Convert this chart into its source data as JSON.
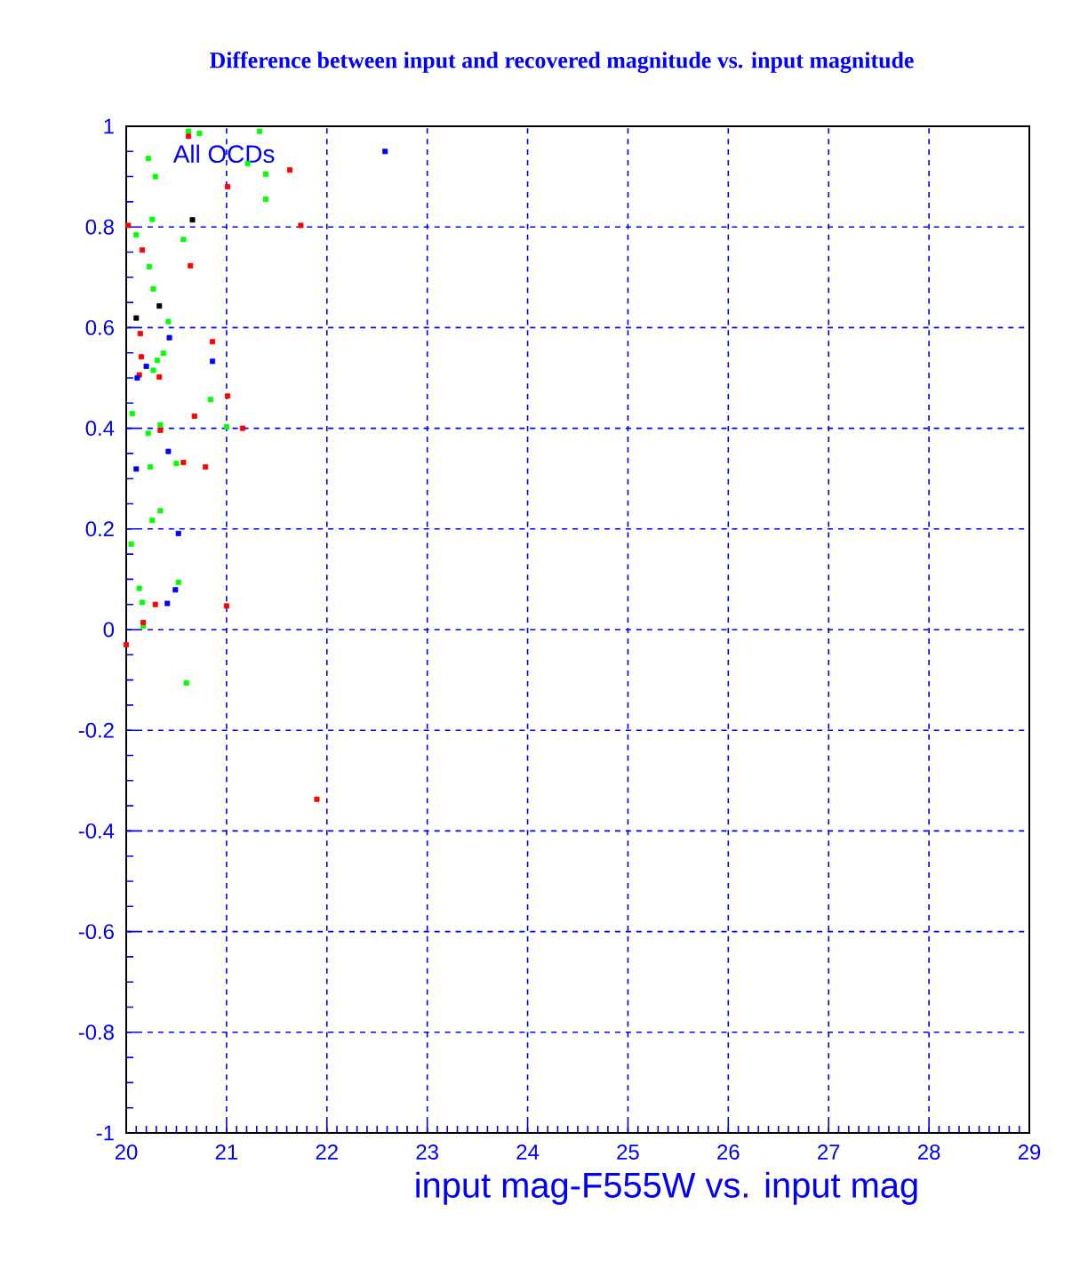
{
  "chart_data": {
    "type": "scatter",
    "title": "Difference between input and recovered magnitude vs. input magnitude",
    "xlabel": "input mag-F555W vs. input mag",
    "annotations": [
      "All OCDs"
    ],
    "xlim": [
      20,
      29
    ],
    "ylim": [
      -1,
      1
    ],
    "xticks": [
      20,
      21,
      22,
      23,
      24,
      25,
      26,
      27,
      28,
      29
    ],
    "yticks": [
      -1,
      -0.8,
      -0.6,
      -0.4,
      -0.2,
      0,
      0.2,
      0.4,
      0.6,
      0.8,
      1
    ],
    "grid": true,
    "marker": "square",
    "series": [
      {
        "color": "#00ff00",
        "x": [
          20.62,
          20.73,
          21.33,
          21.39,
          21.39,
          20.22,
          20.29,
          21.21,
          20.26,
          20.1,
          20.57,
          20.23,
          20.27,
          20.42,
          20.37,
          20.31,
          20.27,
          20.84,
          20.06,
          20.34,
          20.22,
          21.0,
          20.24,
          20.5,
          20.34,
          20.26,
          20.05,
          20.52,
          20.13,
          20.16,
          20.17,
          20.6
        ],
        "values": [
          0.99,
          0.986,
          0.99,
          0.905,
          0.855,
          0.936,
          0.9,
          0.926,
          0.815,
          0.784,
          0.775,
          0.721,
          0.677,
          0.612,
          0.549,
          0.535,
          0.515,
          0.457,
          0.429,
          0.407,
          0.39,
          0.403,
          0.323,
          0.33,
          0.236,
          0.217,
          0.17,
          0.094,
          0.082,
          0.054,
          0.007,
          -0.106
        ]
      },
      {
        "color": "#ff0000",
        "x": [
          20.62,
          21.63,
          21.01,
          20.02,
          21.74,
          20.16,
          20.64,
          20.14,
          20.86,
          20.15,
          20.13,
          20.33,
          21.01,
          20.68,
          20.34,
          21.16,
          20.57,
          20.79,
          20.29,
          21.0,
          20.17,
          20.0,
          21.9
        ],
        "values": [
          0.98,
          0.913,
          0.88,
          0.803,
          0.803,
          0.754,
          0.723,
          0.588,
          0.572,
          0.542,
          0.506,
          0.502,
          0.464,
          0.424,
          0.396,
          0.4,
          0.332,
          0.323,
          0.05,
          0.047,
          0.014,
          -0.03,
          -0.337
        ]
      },
      {
        "color": "#0000ff",
        "x": [
          20.43,
          20.2,
          20.86,
          20.11,
          20.42,
          20.1,
          20.52,
          20.49,
          20.41,
          22.58
        ],
        "values": [
          0.58,
          0.523,
          0.533,
          0.5,
          0.354,
          0.319,
          0.191,
          0.079,
          0.052,
          0.95
        ]
      },
      {
        "color": "#000000",
        "x": [
          20.66,
          20.33,
          20.1
        ],
        "values": [
          0.814,
          0.643,
          0.619
        ]
      }
    ]
  }
}
